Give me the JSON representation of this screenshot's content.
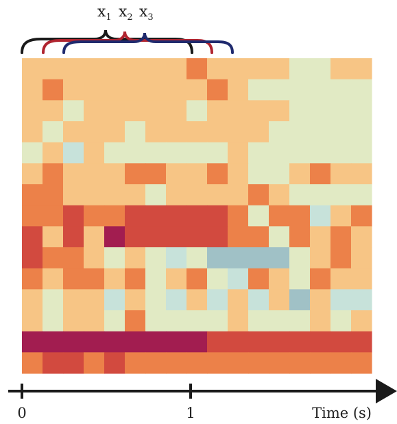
{
  "palette": {
    "O": "#F7C585",
    "L": "#E1EAC4",
    "N": "#EC8149",
    "R": "#D24A3F",
    "M": "#A21D50",
    "B": "#A0C1C6",
    "V": "#C7E2DA"
  },
  "rows": [
    "OOOOOOOONOOOOLLOO",
    "ONOOOOOOONOLLLLLL",
    "OOLOOOOOLOOOOLLLL",
    "OLOOOLOOOOOOLLLLL",
    "LOVOLLLLLLOLLLLLL",
    "ONOOONNOONOLLONOO",
    "NNOOOOLOOOONOLLLL",
    "NNRNNRRRRRNLNNVON",
    "ROROMRRRRRNNLNONO",
    "RNNOLOLVLBBBBLONO",
    "NONNONLONLVNOLNOO",
    "OLOOVOLVOVOVOBOVV",
    "OLOOLNLLLLOLLLOLO",
    "MMMMMMMMMRRRRRRRR",
    "NRRNRNNNNNNNNNNNN"
  ],
  "labels": {
    "x1": "x",
    "x1_sub": "1",
    "x2": "x",
    "x2_sub": "2",
    "x3": "x",
    "x3_sub": "3",
    "tick0": "0",
    "tick1": "1",
    "axis_label": "Time (s)"
  },
  "colors": {
    "brace_x1": "#1a1a1a",
    "brace_x2": "#B0242F",
    "brace_x3": "#1F2A6E",
    "axis": "#1a1a1a"
  }
}
